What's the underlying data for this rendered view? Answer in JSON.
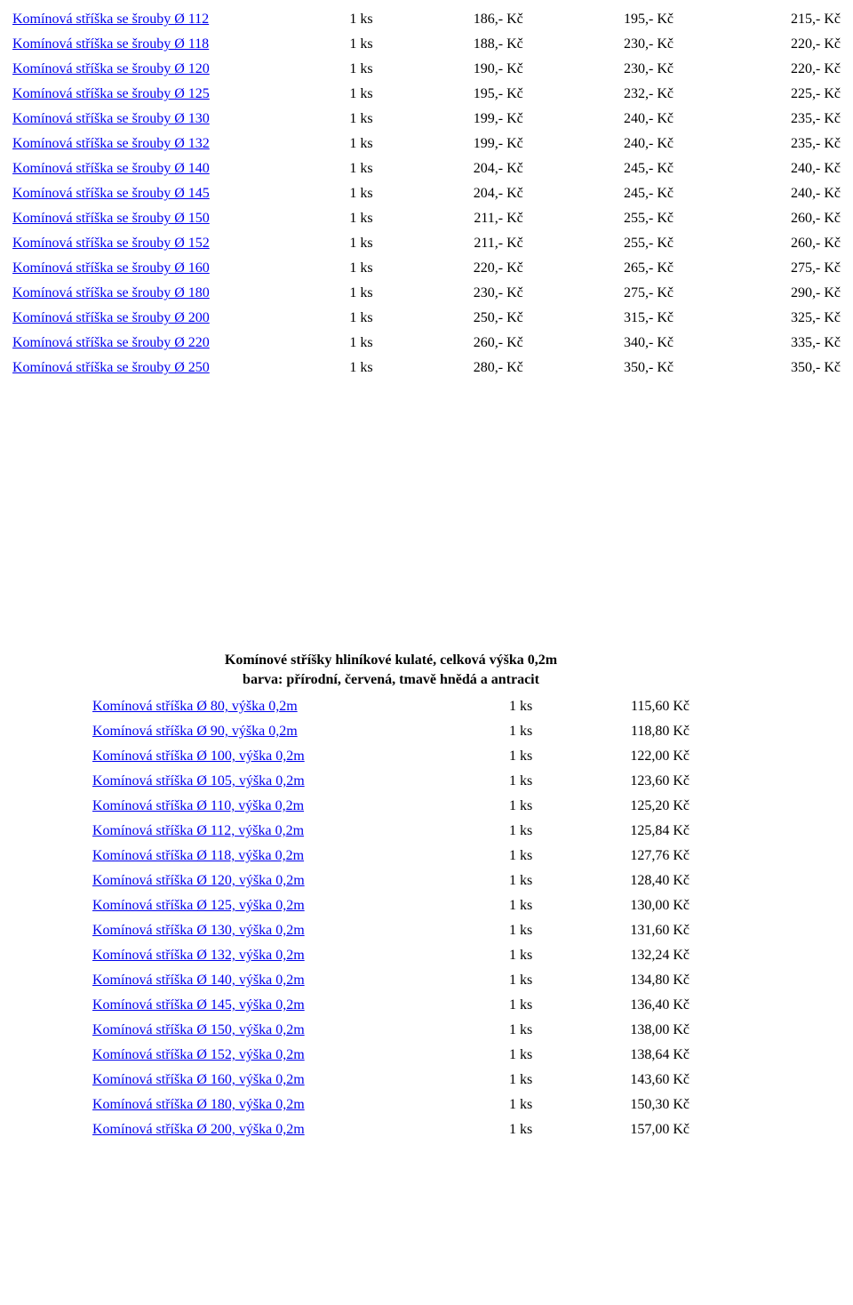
{
  "currency": "Kč",
  "qty_label": "1 ks",
  "table1": {
    "rows": [
      {
        "name": "Komínová stříška se šrouby Ø 112",
        "p1": "186,-",
        "p2": "195,-",
        "p3": "215,-"
      },
      {
        "name": "Komínová stříška se šrouby Ø 118",
        "p1": "188,-",
        "p2": "230,-",
        "p3": "220,-"
      },
      {
        "name": "Komínová stříška se šrouby Ø 120",
        "p1": "190,-",
        "p2": "230,-",
        "p3": "220,-"
      },
      {
        "name": "Komínová stříška se šrouby Ø 125",
        "p1": "195,-",
        "p2": "232,-",
        "p3": "225,-"
      },
      {
        "name": "Komínová stříška se šrouby Ø 130",
        "p1": "199,-",
        "p2": "240,-",
        "p3": "235,-"
      },
      {
        "name": "Komínová stříška se šrouby Ø 132",
        "p1": "199,-",
        "p2": "240,-",
        "p3": "235,-"
      },
      {
        "name": "Komínová stříška se šrouby Ø 140",
        "p1": "204,-",
        "p2": "245,-",
        "p3": "240,-"
      },
      {
        "name": "Komínová stříška se šrouby Ø 145",
        "p1": "204,-",
        "p2": "245,-",
        "p3": "240,-"
      },
      {
        "name": "Komínová stříška se šrouby Ø 150",
        "p1": "211,-",
        "p2": "255,-",
        "p3": "260,-"
      },
      {
        "name": "Komínová stříška se šrouby Ø 152",
        "p1": "211,-",
        "p2": "255,-",
        "p3": "260,-"
      },
      {
        "name": "Komínová stříška se šrouby Ø 160",
        "p1": "220,-",
        "p2": "265,-",
        "p3": "275,-"
      },
      {
        "name": "Komínová stříška se šrouby Ø 180",
        "p1": "230,-",
        "p2": "275,-",
        "p3": "290,-"
      },
      {
        "name": "Komínová stříška se šrouby Ø 200",
        "p1": "250,-",
        "p2": "315,-",
        "p3": "325,-"
      },
      {
        "name": "Komínová stříška se šrouby Ø 220",
        "p1": "260,-",
        "p2": "340,-",
        "p3": "335,-"
      },
      {
        "name": "Komínová stříška se šrouby Ø 250",
        "p1": "280,-",
        "p2": "350,-",
        "p3": "350,-"
      }
    ]
  },
  "table2": {
    "header_line1": "Komínové stříšky hliníkové kulaté, celková výška 0,2m",
    "header_line2": "barva: přírodní, červená, tmavě hnědá a antracit",
    "rows": [
      {
        "name": "Komínová stříška Ø 80, výška 0,2m",
        "p": "115,60"
      },
      {
        "name": "Komínová stříška Ø 90, výška 0,2m",
        "p": "118,80"
      },
      {
        "name": "Komínová stříška Ø 100, výška 0,2m",
        "p": "122,00"
      },
      {
        "name": "Komínová stříška Ø 105, výška 0,2m",
        "p": "123,60"
      },
      {
        "name": "Komínová stříška Ø 110, výška 0,2m",
        "p": "125,20"
      },
      {
        "name": "Komínová stříška Ø 112, výška 0,2m",
        "p": "125,84"
      },
      {
        "name": "Komínová stříška Ø 118, výška 0,2m",
        "p": "127,76"
      },
      {
        "name": "Komínová stříška Ø 120, výška 0,2m",
        "p": "128,40"
      },
      {
        "name": "Komínová stříška Ø 125, výška 0,2m",
        "p": "130,00"
      },
      {
        "name": "Komínová stříška Ø 130, výška 0,2m",
        "p": "131,60"
      },
      {
        "name": "Komínová stříška Ø 132, výška 0,2m",
        "p": "132,24"
      },
      {
        "name": "Komínová stříška Ø 140, výška 0,2m",
        "p": "134,80"
      },
      {
        "name": "Komínová stříška Ø 145, výška 0,2m",
        "p": "136,40"
      },
      {
        "name": "Komínová stříška Ø 150, výška 0,2m",
        "p": "138,00"
      },
      {
        "name": "Komínová stříška Ø 152, výška 0,2m",
        "p": "138,64"
      },
      {
        "name": "Komínová stříška Ø 160, výška 0,2m",
        "p": "143,60"
      },
      {
        "name": "Komínová stříška Ø 180, výška 0,2m",
        "p": "150,30"
      },
      {
        "name": "Komínová stříška Ø 200, výška 0,2m",
        "p": "157,00"
      }
    ]
  }
}
